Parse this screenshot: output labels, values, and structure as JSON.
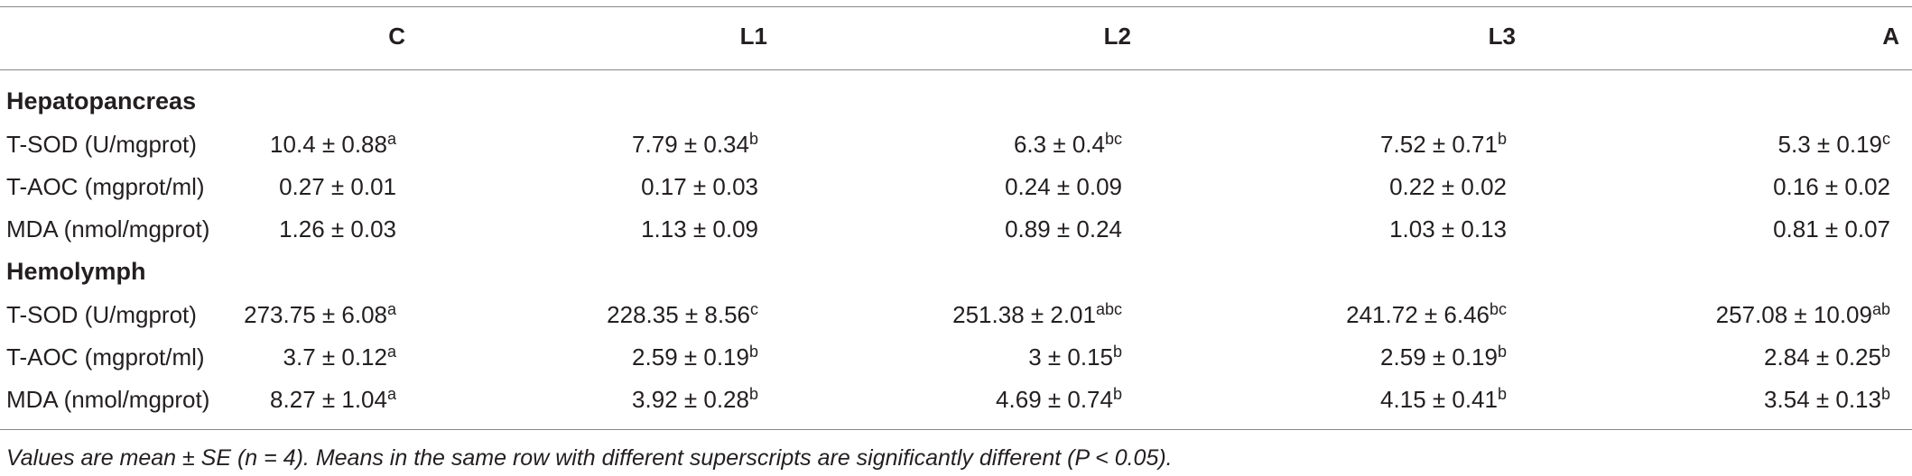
{
  "table": {
    "columns": [
      "C",
      "L1",
      "L2",
      "L3",
      "A"
    ],
    "sections": [
      {
        "title": "Hepatopancreas",
        "rows": [
          {
            "label": "T-SOD (U/mgprot)",
            "cells": [
              {
                "text": "10.4 ± 0.88",
                "sup": "a"
              },
              {
                "text": "7.79 ± 0.34",
                "sup": "b"
              },
              {
                "text": "6.3 ± 0.4",
                "sup": "bc"
              },
              {
                "text": "7.52 ± 0.71",
                "sup": "b"
              },
              {
                "text": "5.3 ± 0.19",
                "sup": "c"
              }
            ]
          },
          {
            "label": "T-AOC (mgprot/ml)",
            "cells": [
              {
                "text": "0.27 ± 0.01"
              },
              {
                "text": "0.17 ± 0.03"
              },
              {
                "text": "0.24 ± 0.09"
              },
              {
                "text": "0.22 ± 0.02"
              },
              {
                "text": "0.16 ± 0.02"
              }
            ]
          },
          {
            "label": "MDA (nmol/mgprot)",
            "cells": [
              {
                "text": "1.26 ± 0.03"
              },
              {
                "text": "1.13 ± 0.09"
              },
              {
                "text": "0.89 ± 0.24"
              },
              {
                "text": "1.03 ± 0.13"
              },
              {
                "text": "0.81 ± 0.07"
              }
            ]
          }
        ]
      },
      {
        "title": "Hemolymph",
        "rows": [
          {
            "label": "T-SOD (U/mgprot)",
            "cells": [
              {
                "text": "273.75 ± 6.08",
                "sup": "a"
              },
              {
                "text": "228.35 ± 8.56",
                "sup": "c"
              },
              {
                "text": "251.38 ± 2.01",
                "sup": "abc"
              },
              {
                "text": "241.72 ± 6.46",
                "sup": "bc"
              },
              {
                "text": "257.08 ± 10.09",
                "sup": "ab"
              }
            ]
          },
          {
            "label": "T-AOC (mgprot/ml)",
            "cells": [
              {
                "text": "3.7 ± 0.12",
                "sup": "a"
              },
              {
                "text": "2.59 ± 0.19",
                "sup": "b"
              },
              {
                "text": "3 ± 0.15",
                "sup": "b"
              },
              {
                "text": "2.59 ± 0.19",
                "sup": "b"
              },
              {
                "text": "2.84 ± 0.25",
                "sup": "b"
              }
            ]
          },
          {
            "label": "MDA (nmol/mgprot)",
            "cells": [
              {
                "text": "8.27 ± 1.04",
                "sup": "a"
              },
              {
                "text": "3.92 ± 0.28",
                "sup": "b"
              },
              {
                "text": "4.69 ± 0.74",
                "sup": "b"
              },
              {
                "text": "4.15 ± 0.41",
                "sup": "b"
              },
              {
                "text": "3.54 ± 0.13",
                "sup": "b"
              }
            ]
          }
        ]
      }
    ],
    "footnote": "Values are mean ± SE (n = 4). Means in the same row with different superscripts are significantly different (P < 0.05)."
  }
}
